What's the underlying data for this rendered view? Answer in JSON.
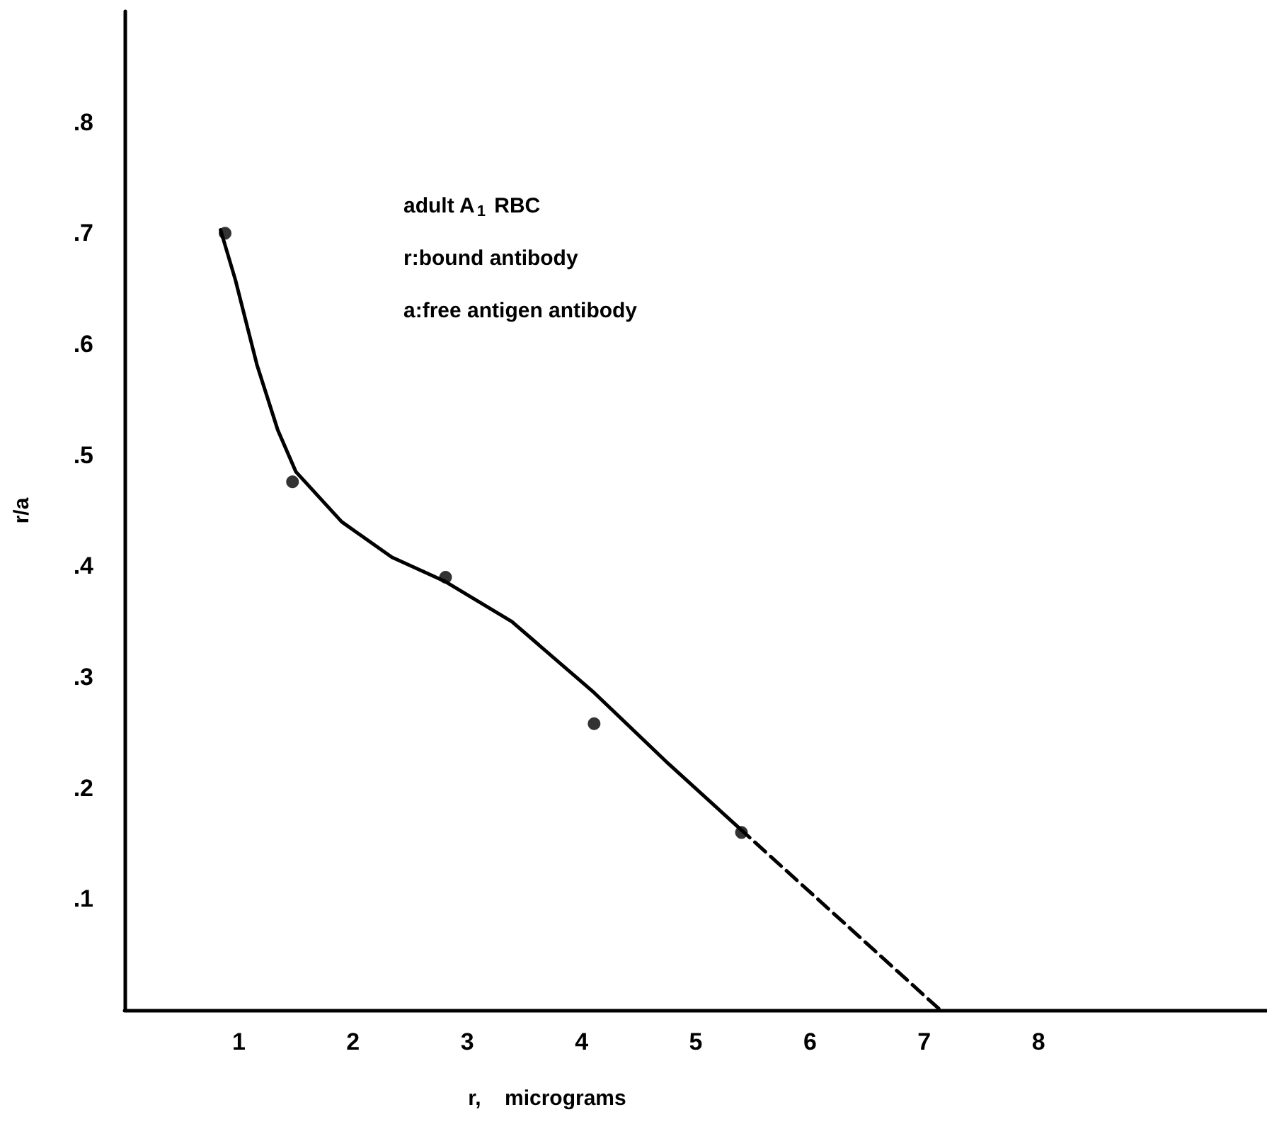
{
  "chart_data": {
    "type": "scatter",
    "xlabel": "r,    micrograms",
    "ylabel": "r/a",
    "annotations": [
      "adult A$_{1}$ RBC",
      "r:bound antibody",
      "a:free antigen antibody"
    ],
    "xlim": [
      0,
      10
    ],
    "xticks": [
      1,
      2,
      3,
      4,
      5,
      6,
      7,
      8
    ],
    "ylim": [
      0,
      0.9
    ],
    "yticks": [
      {
        "value": 0.1,
        "label": ".1"
      },
      {
        "value": 0.2,
        "label": ".2"
      },
      {
        "value": 0.3,
        "label": ".3"
      },
      {
        "value": 0.4,
        "label": ".4"
      },
      {
        "value": 0.5,
        "label": ".5"
      },
      {
        "value": 0.6,
        "label": ".6"
      },
      {
        "value": 0.7,
        "label": ".7"
      },
      {
        "value": 0.8,
        "label": ".8"
      }
    ],
    "grid": false,
    "marker": "circle",
    "series": [
      {
        "color": "#000000",
        "x": [
          0.88,
          1.47,
          2.81,
          4.11,
          5.4
        ],
        "values": [
          0.7,
          0.476,
          0.39,
          0.258,
          0.16
        ]
      },
      {
        "type": "line",
        "color": "#000000",
        "marker": "none",
        "line_style": "solid",
        "x": [
          0.84,
          0.97,
          1.16,
          1.34,
          1.5,
          1.9,
          2.34,
          2.81,
          3.39,
          4.11,
          4.76,
          5.38
        ],
        "values": [
          0.703,
          0.658,
          0.581,
          0.523,
          0.485,
          0.44,
          0.408,
          0.386,
          0.35,
          0.286,
          0.222,
          0.164
        ]
      },
      {
        "type": "line",
        "color": "#000000",
        "marker": "none",
        "line_style": "dashed",
        "x": [
          5.38,
          7.14
        ],
        "values": [
          0.164,
          0
        ]
      }
    ]
  }
}
